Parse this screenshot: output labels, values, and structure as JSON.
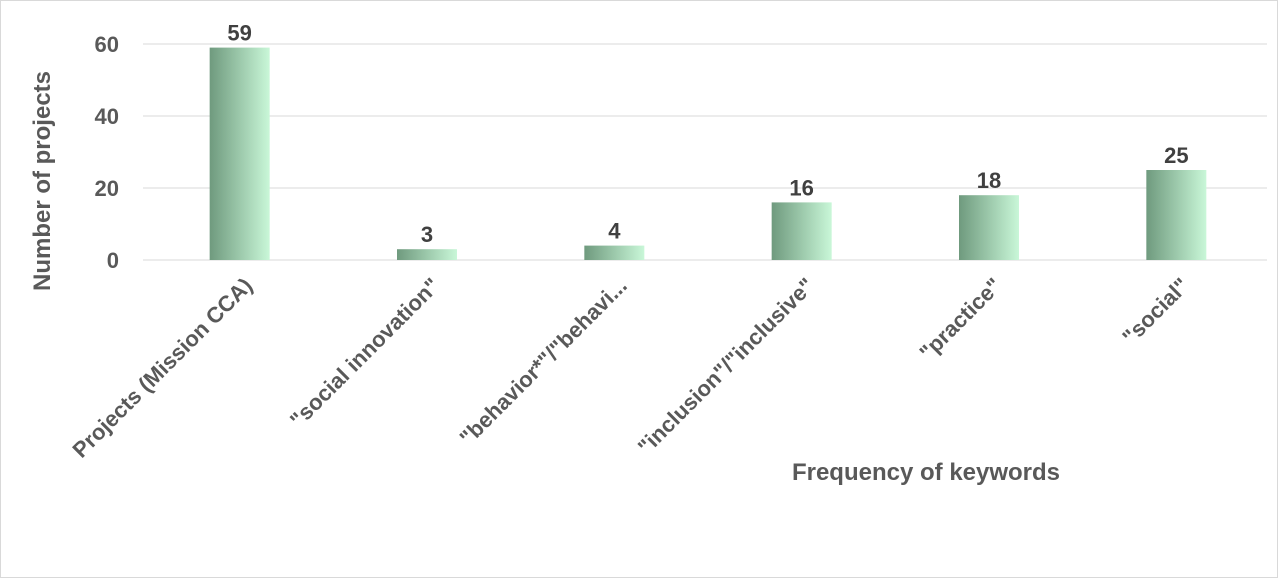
{
  "chart_data": {
    "type": "bar",
    "categories": [
      "Projects (Mission CCA)",
      "\"social innovation\"",
      "\"behavior*\"/\"behavi...",
      "\"inclusion\"/\"inclusive\"",
      "\"practice\"",
      "\"social\""
    ],
    "values": [
      59,
      3,
      4,
      16,
      18,
      25
    ],
    "title": "",
    "xlabel": "Frequency of keywords",
    "ylabel": "Number of projects",
    "ylim": [
      0,
      60
    ],
    "yticks": [
      0,
      20,
      40,
      60
    ],
    "grid": true,
    "legend": "none",
    "colors": {
      "bar_dark": "#6f9a7e",
      "bar_light": "#c9f7d8",
      "gridline": "#d9d9d9",
      "text": "#595959"
    }
  }
}
